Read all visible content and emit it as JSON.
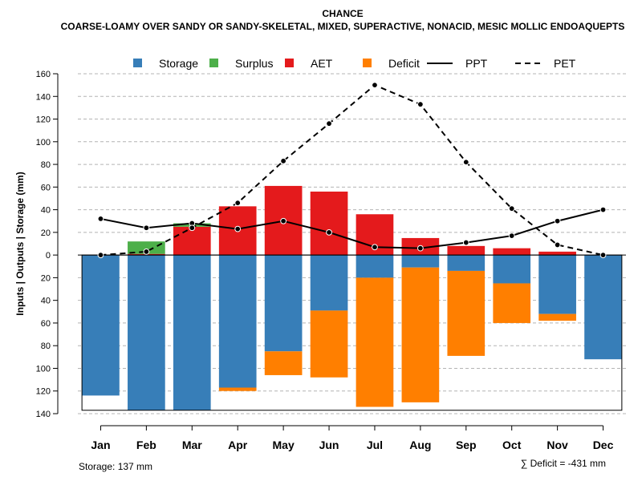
{
  "chart_data": {
    "type": "bar",
    "title": "CHANCE",
    "subtitle": "COARSE-LOAMY OVER SANDY OR SANDY-SKELETAL, MIXED, SUPERACTIVE, NONACID, MESIC MOLLIC ENDOAQUEPTS",
    "ylabel": "Inputs | Outputs | Storage    (mm)",
    "xlabel": "",
    "ylim": [
      -140,
      160
    ],
    "y_ticks": [
      160,
      140,
      120,
      100,
      80,
      60,
      40,
      20,
      0,
      -20,
      -40,
      -60,
      -80,
      -100,
      -120,
      -140
    ],
    "y_tick_labels": [
      "160",
      "140",
      "120",
      "100",
      "80",
      "60",
      "40",
      "20",
      "0",
      "20",
      "40",
      "60",
      "80",
      "100",
      "120",
      "140"
    ],
    "grid": true,
    "legend_position": "top",
    "categories": [
      "Jan",
      "Feb",
      "Mar",
      "Apr",
      "May",
      "Jun",
      "Jul",
      "Aug",
      "Sep",
      "Oct",
      "Nov",
      "Dec"
    ],
    "series": [
      {
        "name": "Storage",
        "kind": "bar",
        "color": "#377EB8",
        "values": [
          -124,
          -137,
          -137,
          -117,
          -85,
          -49,
          -20,
          -11,
          -14,
          -25,
          -52,
          -92
        ]
      },
      {
        "name": "Surplus",
        "kind": "bar",
        "color": "#4DAF4A",
        "values": [
          0,
          11,
          3,
          0,
          0,
          0,
          0,
          0,
          0,
          0,
          0,
          0
        ]
      },
      {
        "name": "AET",
        "kind": "bar",
        "color": "#E41A1C",
        "values": [
          0,
          1,
          25,
          43,
          61,
          56,
          36,
          15,
          8,
          6,
          3,
          0
        ]
      },
      {
        "name": "Deficit",
        "kind": "bar",
        "color": "#FF7F00",
        "values": [
          0,
          0,
          0,
          -3,
          -21,
          -59,
          -114,
          -119,
          -75,
          -35,
          -6,
          0
        ]
      },
      {
        "name": "PPT",
        "kind": "line",
        "color": "#000000",
        "dash": "solid",
        "values": [
          32,
          24,
          28,
          23,
          30,
          20,
          7,
          6,
          11,
          17,
          30,
          40
        ]
      },
      {
        "name": "PET",
        "kind": "line",
        "color": "#000000",
        "dash": "dashed",
        "values": [
          0,
          3,
          24,
          46,
          83,
          116,
          150,
          133,
          82,
          41,
          9,
          0
        ]
      }
    ],
    "storage_capacity_mm": 137,
    "annotations": {
      "storage": "Storage: 137 mm",
      "deficit": "∑ Deficit = -431 mm"
    }
  }
}
